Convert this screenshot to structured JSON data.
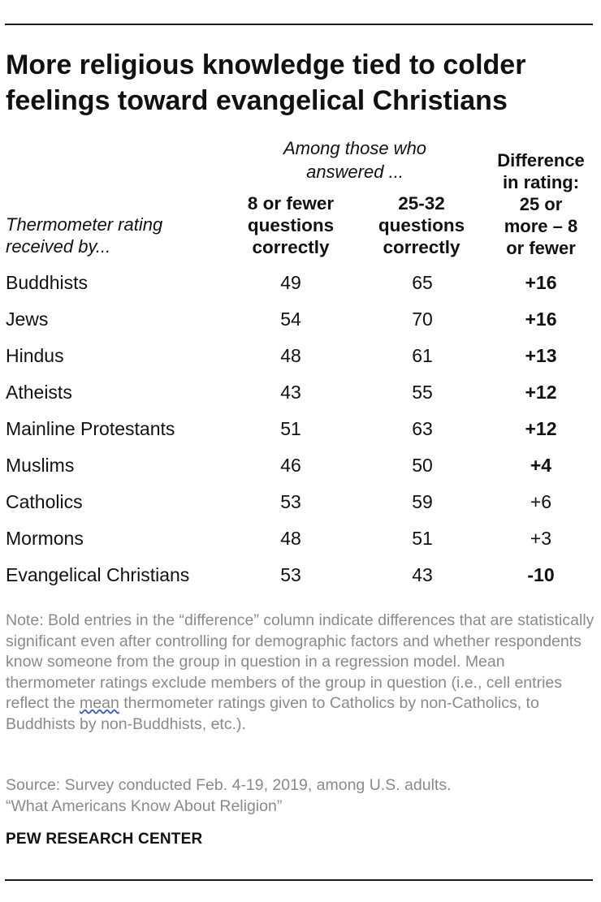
{
  "title": "More religious knowledge tied to colder\nfeelings toward evangelical Christians",
  "headers": {
    "group": "Among those who\nanswered ...",
    "row_label": "Thermometer rating\nreceived by...",
    "col1": "8 or fewer\nquestions\ncorrectly",
    "col2": "25-32\nquestions\ncorrectly",
    "col3": "Difference\nin rating:\n25 or\nmore – 8\nor fewer"
  },
  "chart_data": {
    "type": "table",
    "title": "More religious knowledge tied to colder feelings toward evangelical Christians",
    "columns": [
      "Thermometer rating received by...",
      "8 or fewer questions correctly",
      "25-32 questions correctly",
      "Difference in rating: 25 or more – 8 or fewer"
    ],
    "rows": [
      {
        "label": "Buddhists",
        "low": "49",
        "high": "65",
        "diff": "+16",
        "significant": true
      },
      {
        "label": "Jews",
        "low": "54",
        "high": "70",
        "diff": "+16",
        "significant": true
      },
      {
        "label": "Hindus",
        "low": "48",
        "high": "61",
        "diff": "+13",
        "significant": true
      },
      {
        "label": "Atheists",
        "low": "43",
        "high": "55",
        "diff": "+12",
        "significant": true
      },
      {
        "label": "Mainline Protestants",
        "low": "51",
        "high": "63",
        "diff": "+12",
        "significant": true
      },
      {
        "label": "Muslims",
        "low": "46",
        "high": "50",
        "diff": "+4",
        "significant": true
      },
      {
        "label": "Catholics",
        "low": "53",
        "high": "59",
        "diff": "+6",
        "significant": false
      },
      {
        "label": "Mormons",
        "low": "48",
        "high": "51",
        "diff": "+3",
        "significant": false
      },
      {
        "label": "Evangelical Christians",
        "low": "53",
        "high": "43",
        "diff": "-10",
        "significant": true
      }
    ]
  },
  "note": {
    "before_mean": "Note: Bold entries in the “difference” column indicate differences that are statistically significant even after controlling for demographic factors and whether respondents know someone from the group in question in a regression model. Mean thermometer ratings exclude members of the group in question (i.e., cell entries reflect the ",
    "mean_word": "mean",
    "after_mean": " thermometer ratings given to Catholics by non-Catholics, to Buddhists by non-Buddhists, etc.)."
  },
  "source": {
    "line1": "Source: Survey conducted Feb. 4-19, 2019, among U.S. adults.",
    "line2": "“What Americans Know About Religion”"
  },
  "brand": "PEW RESEARCH CENTER",
  "colors": {
    "text": "#111111",
    "note_text": "#8a8a8a",
    "rule": "#1a1a1a",
    "spellcheck_underline": "#3a5fcd"
  }
}
